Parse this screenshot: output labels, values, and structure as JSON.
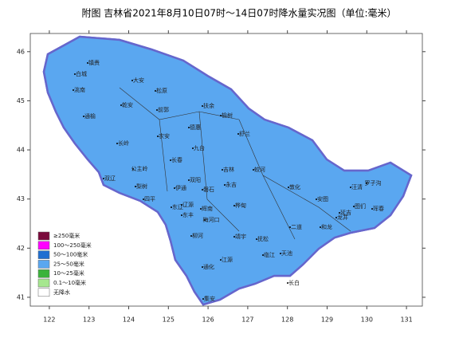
{
  "title": "附图  吉林省2021年8月10日07时～14日07时降水量实况图（单位:毫米）",
  "axes": {
    "lon_ticks": [
      122,
      123,
      124,
      125,
      126,
      127,
      128,
      129,
      130,
      131
    ],
    "lat_ticks": [
      41,
      42,
      43,
      44,
      45,
      46
    ],
    "lon_range": [
      121.52,
      131.4
    ],
    "lat_range": [
      40.82,
      46.37
    ]
  },
  "legend": [
    {
      "label": "≥250毫米",
      "color": "#7a0a3c"
    },
    {
      "label": "100～250毫米",
      "color": "#ff00ff"
    },
    {
      "label": "50～100毫米",
      "color": "#1f6fd1"
    },
    {
      "label": "25～50毫米",
      "color": "#5aa7f0"
    },
    {
      "label": "10～25毫米",
      "color": "#3bb33b"
    },
    {
      "label": "0.1～10毫米",
      "color": "#a6e78f"
    },
    {
      "label": "无降水",
      "color": "#ffffff"
    }
  ],
  "places": [
    "镇赉",
    "白城",
    "大安",
    "洮南",
    "松原",
    "乾安",
    "前郭",
    "扶余",
    "通榆",
    "长岭",
    "农安",
    "德惠",
    "榆树",
    "舒兰",
    "九台",
    "长春",
    "双阳",
    "公主岭",
    "双辽",
    "梨树",
    "四平",
    "伊通",
    "吉林",
    "永吉",
    "磐石",
    "蛟河",
    "敦化",
    "安图",
    "延吉",
    "汪清",
    "图们",
    "龙井",
    "珲春",
    "罗子沟",
    "和龙",
    "桦甸",
    "辉南",
    "柳河",
    "梅河口",
    "东丰",
    "东辽",
    "辽源",
    "靖宇",
    "抚松",
    "二道",
    "江源",
    "通化",
    "集安",
    "临江",
    "长白",
    "天池"
  ]
}
